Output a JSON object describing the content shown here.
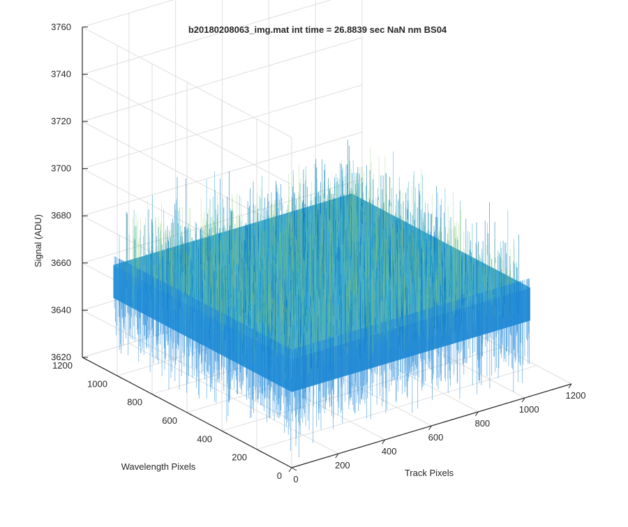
{
  "chart_data": {
    "type": "surface",
    "title": "b20180208063_img.mat int time = 26.8839 sec  NaN nm BS04",
    "xlabel": "Track Pixels",
    "ylabel": "Wavelength Pixels",
    "zlabel": "Signal (ADU)",
    "xlim": [
      0,
      1200
    ],
    "ylim": [
      0,
      1200
    ],
    "zlim": [
      3620,
      3760
    ],
    "x_ticks": [
      "0",
      "200",
      "400",
      "600",
      "800",
      "1000",
      "1200"
    ],
    "y_ticks": [
      "0",
      "200",
      "400",
      "600",
      "800",
      "1000",
      "1200"
    ],
    "z_ticks": [
      "3620",
      "3640",
      "3660",
      "3680",
      "3700",
      "3720",
      "3740",
      "3760"
    ],
    "grid": true,
    "view": "3d-default",
    "surface": {
      "x_range": [
        1,
        1024
      ],
      "y_range": [
        1,
        1024
      ],
      "mean_signal": 3666,
      "signal_min_approx": 3630,
      "signal_max_approx": 3705,
      "colormap": "parula",
      "description_colors": [
        "#0072BD",
        "#1E88D8",
        "#32B0C8",
        "#5CC2A0",
        "#8EC86A"
      ]
    }
  }
}
